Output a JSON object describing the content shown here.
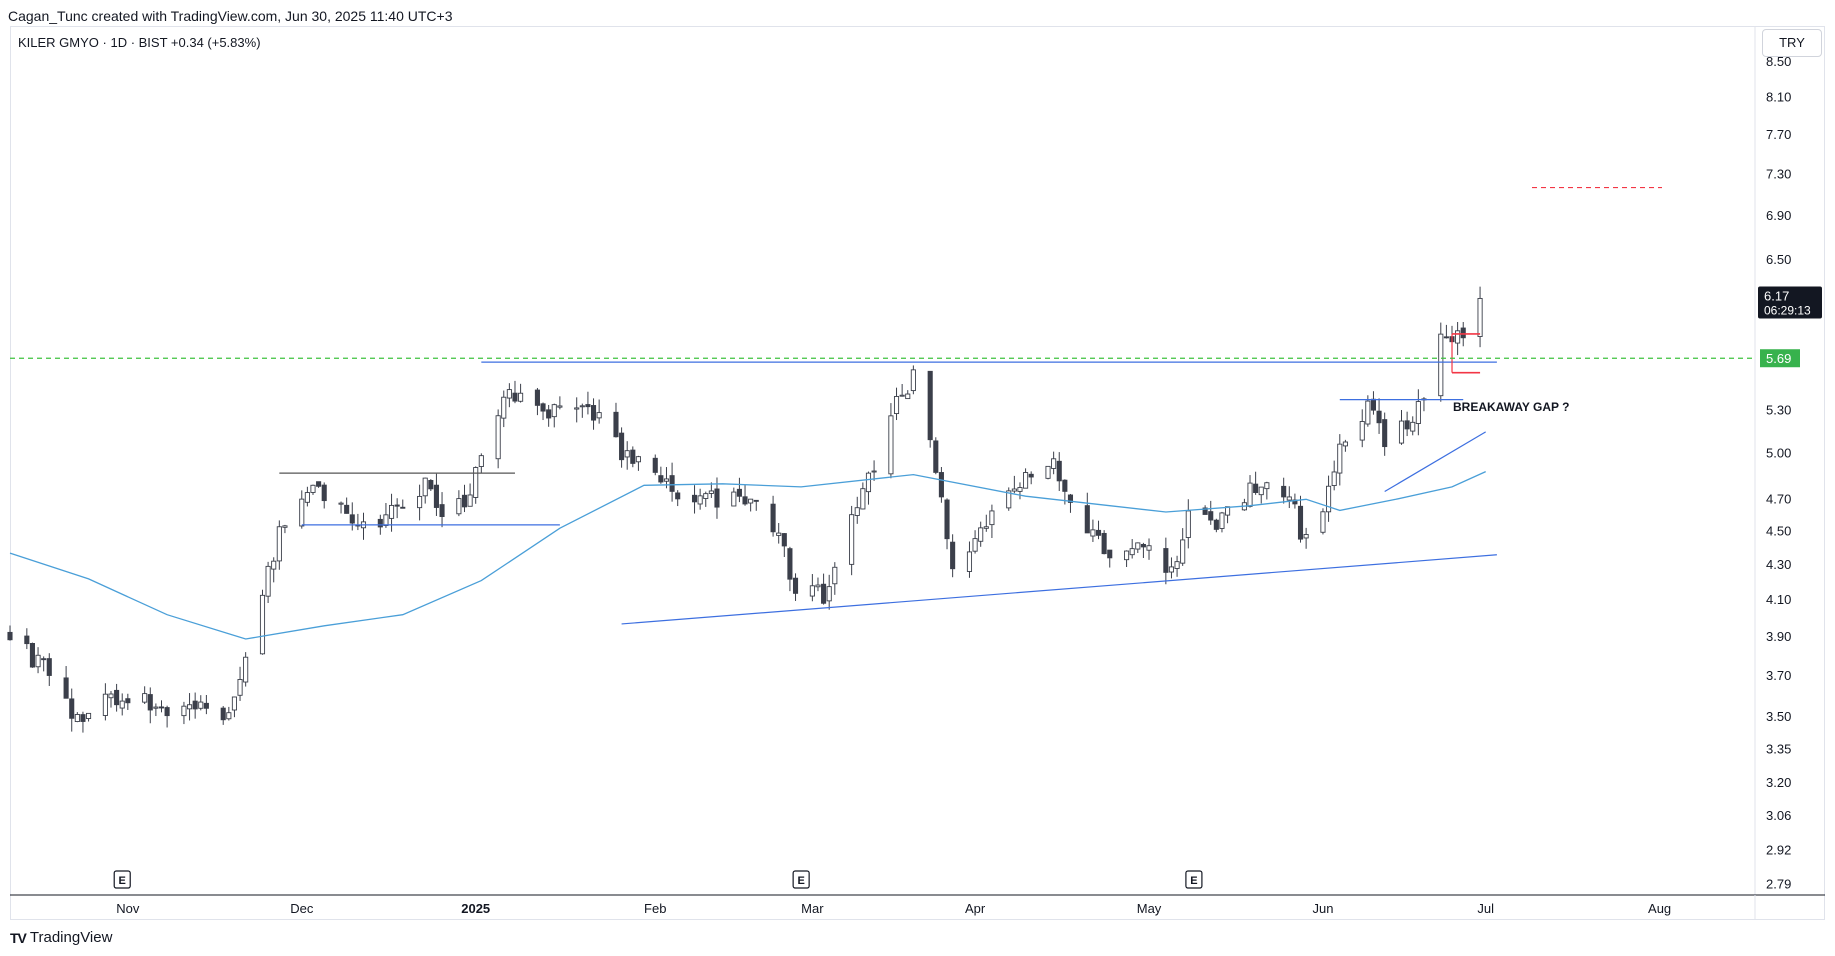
{
  "header": {
    "attribution": "Cagan_Tunc created with TradingView.com, Jun 30, 2025 11:40 UTC+3",
    "symbol_line": "KILER GMYO · 1D · BIST  +0.34 (+5.83%)",
    "currency": "TRY"
  },
  "footer": {
    "brand": "TradingView"
  },
  "colors": {
    "up": "#ffffff",
    "down": "#3b3f4a",
    "wick": "#3b3f4a",
    "ma": "#4a9fd8",
    "trendline": "#3d6fe0",
    "horizontal_black": "#555555",
    "green_dashed": "#3fc23f",
    "red_dashed": "#f23645",
    "price_tag_bg": "#131722",
    "level_tag_bg": "#37b24d"
  },
  "chart_data": {
    "type": "candlestick",
    "y_scale": "log",
    "ylim": [
      2.75,
      8.9
    ],
    "y_ticks": [
      "8.50",
      "8.10",
      "7.70",
      "7.30",
      "6.90",
      "6.50",
      "5.30",
      "5.00",
      "4.70",
      "4.50",
      "4.30",
      "4.10",
      "3.90",
      "3.70",
      "3.50",
      "3.35",
      "3.20",
      "3.06",
      "2.92",
      "2.79"
    ],
    "x_ticks": [
      {
        "label": "Nov",
        "date": "2024-11-01"
      },
      {
        "label": "Dec",
        "date": "2024-12-02"
      },
      {
        "label": "2025",
        "date": "2025-01-02",
        "bold": true
      },
      {
        "label": "Feb",
        "date": "2025-02-03"
      },
      {
        "label": "Mar",
        "date": "2025-03-03"
      },
      {
        "label": "Apr",
        "date": "2025-04-01"
      },
      {
        "label": "May",
        "date": "2025-05-02"
      },
      {
        "label": "Jun",
        "date": "2025-06-02"
      },
      {
        "label": "Jul",
        "date": "2025-07-01"
      },
      {
        "label": "Aug",
        "date": "2025-08-01"
      }
    ],
    "x_range": [
      "2024-10-11",
      "2025-08-18"
    ],
    "earnings_markers": [
      {
        "label": "E",
        "date": "2024-10-31"
      },
      {
        "label": "E",
        "date": "2025-03-01"
      },
      {
        "label": "E",
        "date": "2025-05-10"
      }
    ],
    "last_price": "6.17",
    "countdown": "06:29:13",
    "level_label": "5.69",
    "level_value": 5.69,
    "target_level": 7.17,
    "annotation": "BREAKAWAY GAP ?",
    "anchors": [
      {
        "date": "2024-10-11",
        "close": 3.9
      },
      {
        "date": "2024-10-18",
        "close": 3.7
      },
      {
        "date": "2024-10-23",
        "close": 3.5
      },
      {
        "date": "2024-11-01",
        "close": 3.62
      },
      {
        "date": "2024-11-08",
        "close": 3.52
      },
      {
        "date": "2024-11-15",
        "close": 3.58
      },
      {
        "date": "2024-11-19",
        "close": 3.48
      },
      {
        "date": "2024-11-22",
        "close": 3.78
      },
      {
        "date": "2024-11-26",
        "close": 4.3
      },
      {
        "date": "2024-11-29",
        "close": 4.55
      },
      {
        "date": "2024-12-04",
        "close": 4.82
      },
      {
        "date": "2024-12-10",
        "close": 4.62
      },
      {
        "date": "2024-12-16",
        "close": 4.58
      },
      {
        "date": "2024-12-20",
        "close": 4.62
      },
      {
        "date": "2024-12-24",
        "close": 4.78
      },
      {
        "date": "2024-12-27",
        "close": 4.58
      },
      {
        "date": "2024-12-30",
        "close": 4.65
      },
      {
        "date": "2025-01-03",
        "close": 4.92
      },
      {
        "date": "2025-01-07",
        "close": 5.35
      },
      {
        "date": "2025-01-10",
        "close": 5.48
      },
      {
        "date": "2025-01-15",
        "close": 5.25
      },
      {
        "date": "2025-01-21",
        "close": 5.4
      },
      {
        "date": "2025-01-24",
        "close": 5.25
      },
      {
        "date": "2025-01-29",
        "close": 4.95
      },
      {
        "date": "2025-02-05",
        "close": 4.8
      },
      {
        "date": "2025-02-12",
        "close": 4.68
      },
      {
        "date": "2025-02-19",
        "close": 4.72
      },
      {
        "date": "2025-02-24",
        "close": 4.52
      },
      {
        "date": "2025-02-28",
        "close": 4.2
      },
      {
        "date": "2025-03-05",
        "close": 4.14
      },
      {
        "date": "2025-03-10",
        "close": 4.55
      },
      {
        "date": "2025-03-14",
        "close": 4.9
      },
      {
        "date": "2025-03-18",
        "close": 5.35
      },
      {
        "date": "2025-03-21",
        "close": 5.55
      },
      {
        "date": "2025-03-25",
        "close": 4.85
      },
      {
        "date": "2025-03-28",
        "close": 4.3
      },
      {
        "date": "2025-04-03",
        "close": 4.58
      },
      {
        "date": "2025-04-09",
        "close": 4.78
      },
      {
        "date": "2025-04-14",
        "close": 4.95
      },
      {
        "date": "2025-04-18",
        "close": 4.72
      },
      {
        "date": "2025-04-23",
        "close": 4.45
      },
      {
        "date": "2025-04-28",
        "close": 4.32
      },
      {
        "date": "2025-05-02",
        "close": 4.48
      },
      {
        "date": "2025-05-06",
        "close": 4.26
      },
      {
        "date": "2025-05-09",
        "close": 4.62
      },
      {
        "date": "2025-05-14",
        "close": 4.52
      },
      {
        "date": "2025-05-19",
        "close": 4.72
      },
      {
        "date": "2025-05-23",
        "close": 4.88
      },
      {
        "date": "2025-05-27",
        "close": 4.7
      },
      {
        "date": "2025-05-29",
        "close": 4.52
      },
      {
        "date": "2025-06-02",
        "close": 4.6
      },
      {
        "date": "2025-06-05",
        "close": 5.02
      },
      {
        "date": "2025-06-10",
        "close": 5.32
      },
      {
        "date": "2025-06-13",
        "close": 5.1
      },
      {
        "date": "2025-06-18",
        "close": 5.2
      },
      {
        "date": "2025-06-20",
        "close": 5.38
      },
      {
        "date": "2025-06-23",
        "close": 5.82
      },
      {
        "date": "2025-06-26",
        "close": 5.83
      },
      {
        "date": "2025-06-30",
        "close": 6.17
      }
    ],
    "ma_series": [
      {
        "date": "2024-10-11",
        "value": 4.37
      },
      {
        "date": "2024-10-25",
        "value": 4.22
      },
      {
        "date": "2024-11-08",
        "value": 4.02
      },
      {
        "date": "2024-11-22",
        "value": 3.89
      },
      {
        "date": "2024-12-06",
        "value": 3.96
      },
      {
        "date": "2024-12-20",
        "value": 4.02
      },
      {
        "date": "2025-01-03",
        "value": 4.21
      },
      {
        "date": "2025-01-17",
        "value": 4.52
      },
      {
        "date": "2025-02-01",
        "value": 4.79
      },
      {
        "date": "2025-02-15",
        "value": 4.8
      },
      {
        "date": "2025-03-01",
        "value": 4.78
      },
      {
        "date": "2025-03-21",
        "value": 4.86
      },
      {
        "date": "2025-04-10",
        "value": 4.72
      },
      {
        "date": "2025-04-25",
        "value": 4.66
      },
      {
        "date": "2025-05-05",
        "value": 4.62
      },
      {
        "date": "2025-05-20",
        "value": 4.66
      },
      {
        "date": "2025-05-30",
        "value": 4.7
      },
      {
        "date": "2025-06-05",
        "value": 4.63
      },
      {
        "date": "2025-06-15",
        "value": 4.7
      },
      {
        "date": "2025-06-25",
        "value": 4.78
      },
      {
        "date": "2025-07-01",
        "value": 4.88
      }
    ],
    "drawings": [
      {
        "kind": "hline",
        "color": "black",
        "from": "2024-11-28",
        "to": "2025-01-09",
        "price": 4.87
      },
      {
        "kind": "hline",
        "color": "blue",
        "from": "2024-12-02",
        "to": "2025-01-17",
        "price": 4.54
      },
      {
        "kind": "hline",
        "color": "blue",
        "from": "2025-01-03",
        "to": "2025-07-03",
        "price": 5.66
      },
      {
        "kind": "hline",
        "color": "blue",
        "from": "2025-06-05",
        "to": "2025-06-27",
        "price": 5.38
      },
      {
        "kind": "trend",
        "color": "blue",
        "from": "2025-01-28",
        "to": "2025-07-03",
        "p1": 3.97,
        "p2": 4.36
      },
      {
        "kind": "trend",
        "color": "blue",
        "from": "2025-06-13",
        "to": "2025-07-01",
        "p1": 4.75,
        "p2": 5.15
      }
    ],
    "gap_box": {
      "from": "2025-06-25",
      "to": "2025-06-30",
      "top": 5.88,
      "bottom": 5.58
    }
  }
}
